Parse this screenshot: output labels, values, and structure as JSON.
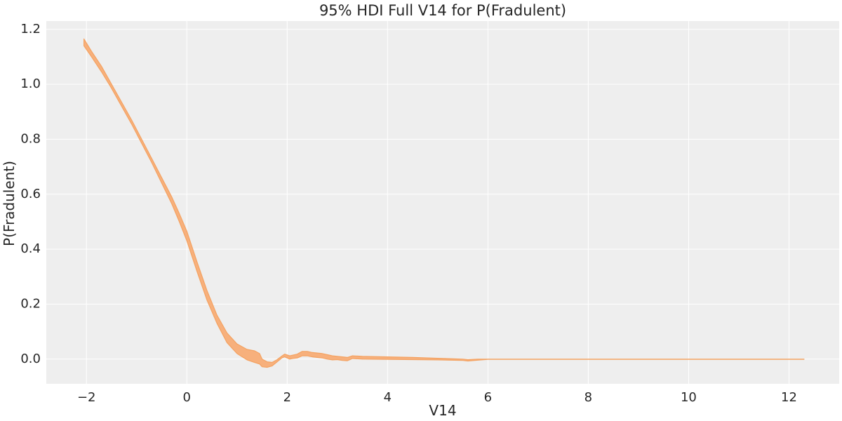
{
  "chart_data": {
    "type": "area",
    "title": "95% HDI Full V14 for P(Fradulent)",
    "xlabel": "V14",
    "ylabel": "P(Fradulent)",
    "xlim": [
      -2.8,
      13.0
    ],
    "ylim": [
      -0.09,
      1.23
    ],
    "xticks": [
      -2,
      0,
      2,
      4,
      6,
      8,
      10,
      12
    ],
    "xtick_labels": [
      "−2",
      "0",
      "2",
      "4",
      "6",
      "8",
      "10",
      "12"
    ],
    "yticks": [
      0.0,
      0.2,
      0.4,
      0.6,
      0.8,
      1.0,
      1.2
    ],
    "ytick_labels": [
      "0.0",
      "0.2",
      "0.4",
      "0.6",
      "0.8",
      "1.0",
      "1.2"
    ],
    "grid": true,
    "colors": {
      "background": "#eeeeee",
      "grid": "#ffffff",
      "band_fill": "#f7b07c",
      "band_edge": "#f4a261"
    },
    "series": [
      {
        "x": [
          -2.05,
          -1.9,
          -1.7,
          -1.5,
          -1.3,
          -1.1,
          -0.9,
          -0.7,
          -0.5,
          -0.3,
          -0.15,
          0.0,
          0.2,
          0.4,
          0.6,
          0.8,
          1.0,
          1.2,
          1.35,
          1.45,
          1.5,
          1.6,
          1.7,
          1.8,
          1.9,
          1.95,
          2.05,
          2.1,
          2.2,
          2.3,
          2.4,
          2.5,
          2.6,
          2.7,
          2.8,
          2.9,
          3.0,
          3.1,
          3.2,
          3.3,
          3.5,
          4.0,
          4.5,
          5.0,
          5.5,
          5.6,
          5.8,
          6.0,
          7.0,
          8.0,
          9.0,
          10.0,
          11.0,
          12.3
        ],
        "lower": [
          1.14,
          1.1,
          1.045,
          0.985,
          0.92,
          0.855,
          0.785,
          0.715,
          0.64,
          0.565,
          0.5,
          0.43,
          0.32,
          0.215,
          0.13,
          0.06,
          0.02,
          -0.003,
          -0.012,
          -0.018,
          -0.028,
          -0.03,
          -0.025,
          -0.01,
          0.005,
          0.008,
          0.0,
          0.002,
          0.004,
          0.012,
          0.012,
          0.008,
          0.006,
          0.004,
          0.0,
          -0.003,
          -0.002,
          -0.005,
          -0.006,
          0.002,
          0.0,
          -0.001,
          -0.002,
          -0.003,
          -0.005,
          -0.007,
          -0.004,
          -0.001,
          -0.001,
          -0.001,
          -0.001,
          -0.001,
          -0.001,
          -0.001
        ],
        "upper": [
          1.165,
          1.12,
          1.065,
          1.0,
          0.935,
          0.87,
          0.8,
          0.73,
          0.66,
          0.59,
          0.53,
          0.465,
          0.355,
          0.25,
          0.16,
          0.095,
          0.055,
          0.035,
          0.03,
          0.02,
          0.0,
          -0.01,
          -0.012,
          -0.002,
          0.012,
          0.018,
          0.012,
          0.014,
          0.018,
          0.028,
          0.028,
          0.024,
          0.022,
          0.02,
          0.016,
          0.012,
          0.01,
          0.008,
          0.006,
          0.012,
          0.01,
          0.008,
          0.006,
          0.003,
          0.0,
          -0.002,
          0.0,
          0.0,
          0.0,
          0.0,
          0.0,
          0.0,
          0.0,
          0.0
        ]
      }
    ]
  }
}
